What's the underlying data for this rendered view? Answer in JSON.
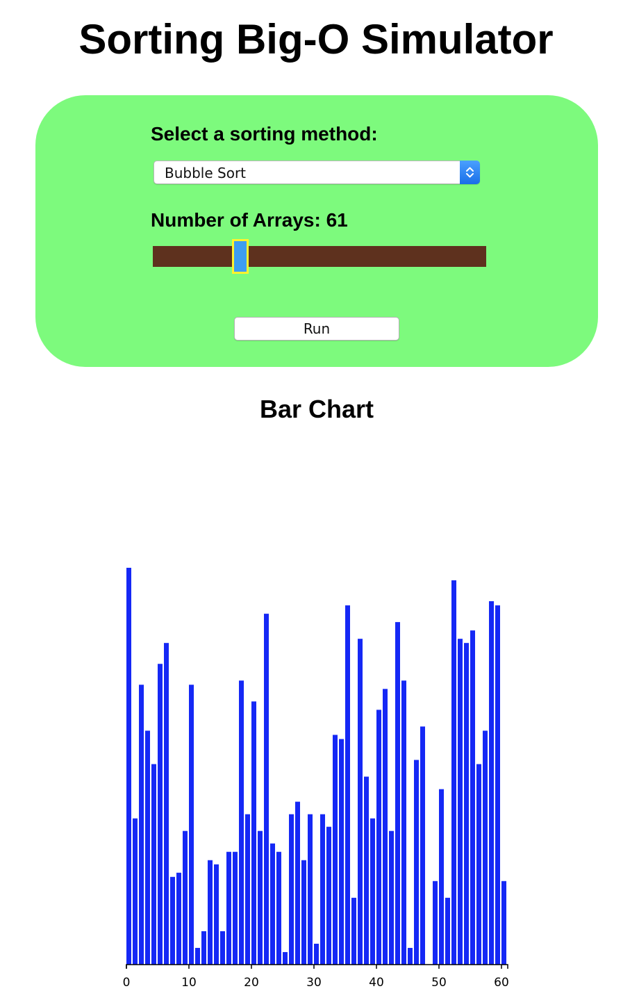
{
  "page": {
    "title": "Sorting Big-O Simulator"
  },
  "controls": {
    "select_label": "Select a sorting method:",
    "sort_method": "Bubble Sort",
    "arrays_label": "Number of Arrays: 61",
    "array_count": 61,
    "run_label": "Run",
    "colors": {
      "panel": "#7dfa7d",
      "slider_track": "#5e311e",
      "slider_thumb": "#3d9df0",
      "slider_thumb_border": "#fff22e"
    }
  },
  "chart_title": "Bar Chart",
  "chart_data": {
    "type": "bar",
    "title": "",
    "xlabel": "",
    "ylabel": "",
    "bar_color": "#1528f5",
    "xlim": [
      0,
      61
    ],
    "ylim": [
      0,
      95
    ],
    "x_ticks": [
      0,
      10,
      20,
      30,
      40,
      50,
      60
    ],
    "x": [
      0,
      1,
      2,
      3,
      4,
      5,
      6,
      7,
      8,
      9,
      10,
      11,
      12,
      13,
      14,
      15,
      16,
      17,
      18,
      19,
      20,
      21,
      22,
      23,
      24,
      25,
      26,
      27,
      28,
      29,
      30,
      31,
      32,
      33,
      34,
      35,
      36,
      37,
      38,
      39,
      40,
      41,
      42,
      43,
      44,
      45,
      46,
      47,
      48,
      49,
      50,
      51,
      52,
      53,
      54,
      55,
      56,
      57,
      58,
      59,
      60
    ],
    "values": [
      95,
      35,
      67,
      56,
      48,
      72,
      77,
      21,
      22,
      32,
      67,
      4,
      8,
      25,
      24,
      8,
      27,
      27,
      68,
      36,
      63,
      32,
      84,
      29,
      27,
      3,
      36,
      39,
      25,
      36,
      5,
      36,
      33,
      55,
      54,
      86,
      16,
      78,
      45,
      35,
      61,
      66,
      32,
      82,
      68,
      4,
      49,
      57,
      0,
      20,
      42,
      16,
      92,
      78,
      77,
      80,
      48,
      56,
      87,
      86,
      20
    ]
  }
}
